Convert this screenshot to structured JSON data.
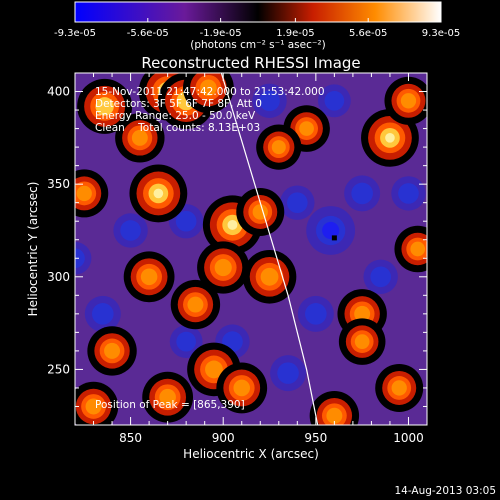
{
  "colorbar": {
    "ticks": [
      "-9.3e-05",
      "-5.6e-05",
      "-1.9e-05",
      "1.9e-05",
      "5.6e-05",
      "9.3e-05"
    ],
    "tick_values": [
      -9.3e-05,
      -5.6e-05,
      -1.9e-05,
      1.9e-05,
      5.6e-05,
      9.3e-05
    ],
    "range": [
      -9.3e-05,
      9.3e-05
    ],
    "unit_label": "(photons cm⁻² s⁻¹ asec⁻²)",
    "colors": [
      "#0000ff",
      "#6a1a9a",
      "#000000",
      "#c81e00",
      "#ff8c00",
      "#ffffff"
    ]
  },
  "chart_data": {
    "type": "heatmap",
    "title": "Reconstructed RHESSI Image",
    "xlabel": "Heliocentric X (arcsec)",
    "ylabel": "Heliocentric Y (arcsec)",
    "xlim": [
      820,
      1010
    ],
    "ylim": [
      220,
      410
    ],
    "xticks": [
      850,
      900,
      950,
      1000
    ],
    "yticks": [
      250,
      300,
      350,
      400
    ],
    "info_lines": [
      "15-Nov-2011 21:47:42.000 to 21:53:42.000",
      "Detectors: 3F 5F 6F 7F 8F, Att 0",
      "Energy Range: 25.0 - 50.0 keV",
      "Clean    Total counts: 8.13E+03"
    ],
    "peak_label": "Position of Peak = [865,390]",
    "peak": [
      865,
      390
    ],
    "marker": [
      960,
      321
    ],
    "limb_curve": [
      [
        899,
        410
      ],
      [
        920,
        340
      ],
      [
        935,
        290
      ],
      [
        945,
        250
      ],
      [
        951,
        220
      ]
    ],
    "hot_spots": [
      [
        836,
        392,
        0.75
      ],
      [
        870,
        400,
        0.85
      ],
      [
        880,
        395,
        0.8
      ],
      [
        892,
        402,
        0.6
      ],
      [
        865,
        345,
        0.85
      ],
      [
        825,
        345,
        0.5
      ],
      [
        905,
        328,
        0.9
      ],
      [
        920,
        335,
        0.5
      ],
      [
        990,
        375,
        0.85
      ],
      [
        1000,
        395,
        0.5
      ],
      [
        900,
        305,
        0.65
      ],
      [
        925,
        300,
        0.7
      ],
      [
        860,
        300,
        0.6
      ],
      [
        885,
        285,
        0.55
      ],
      [
        895,
        250,
        0.7
      ],
      [
        870,
        235,
        0.6
      ],
      [
        840,
        260,
        0.55
      ],
      [
        910,
        240,
        0.6
      ],
      [
        975,
        280,
        0.55
      ],
      [
        975,
        265,
        0.45
      ],
      [
        995,
        240,
        0.5
      ],
      [
        1005,
        315,
        0.45
      ],
      [
        945,
        380,
        0.45
      ],
      [
        830,
        230,
        0.55
      ],
      [
        960,
        225,
        0.55
      ],
      [
        855,
        375,
        0.55
      ],
      [
        930,
        370,
        0.4
      ]
    ],
    "cold_spots": [
      [
        958,
        325,
        0.9
      ],
      [
        940,
        340,
        0.45
      ],
      [
        975,
        345,
        0.5
      ],
      [
        850,
        325,
        0.45
      ],
      [
        880,
        330,
        0.45
      ],
      [
        835,
        280,
        0.5
      ],
      [
        905,
        265,
        0.45
      ],
      [
        950,
        280,
        0.5
      ],
      [
        935,
        248,
        0.5
      ],
      [
        985,
        300,
        0.45
      ],
      [
        960,
        395,
        0.4
      ],
      [
        1000,
        345,
        0.45
      ],
      [
        880,
        265,
        0.4
      ],
      [
        820,
        310,
        0.4
      ],
      [
        925,
        395,
        0.45
      ]
    ]
  },
  "timestamp": "14-Aug-2013 03:05"
}
